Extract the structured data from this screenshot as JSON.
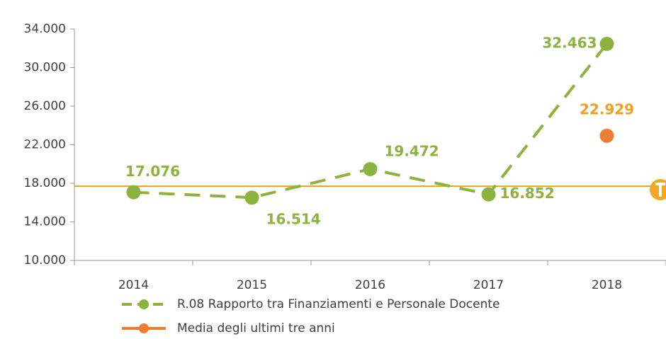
{
  "chart_data": {
    "type": "line",
    "categories": [
      "2014",
      "2015",
      "2016",
      "2017",
      "2018"
    ],
    "series": [
      {
        "name": "R.08 Rapporto tra Finanziamenti e Personale Docente",
        "color": "#8cb33f",
        "dashed": true,
        "values": [
          17076,
          16514,
          19472,
          16852,
          32463
        ],
        "value_labels": [
          "17.076",
          "16.514",
          "19.472",
          "16.852",
          "32.463"
        ],
        "label_color": "#8cb33f"
      },
      {
        "name": "Media degli ultimi tre anni",
        "color": "#ed7d31",
        "dashed": false,
        "values": [
          null,
          null,
          null,
          null,
          22929
        ],
        "value_labels": [
          null,
          null,
          null,
          null,
          "22.929"
        ],
        "label_color": "#f0a020"
      }
    ],
    "reference_line": {
      "value": 17700,
      "color": "#e8a317"
    },
    "ylim": [
      10000,
      34000
    ],
    "yticks": [
      {
        "value": 10000,
        "label": "10.000"
      },
      {
        "value": 14000,
        "label": "14.000"
      },
      {
        "value": 18000,
        "label": "18.000"
      },
      {
        "value": 22000,
        "label": "22.000"
      },
      {
        "value": 26000,
        "label": "26.000"
      },
      {
        "value": 30000,
        "label": "30.000"
      },
      {
        "value": 34000,
        "label": "34.000"
      }
    ],
    "legend": "bottom"
  }
}
